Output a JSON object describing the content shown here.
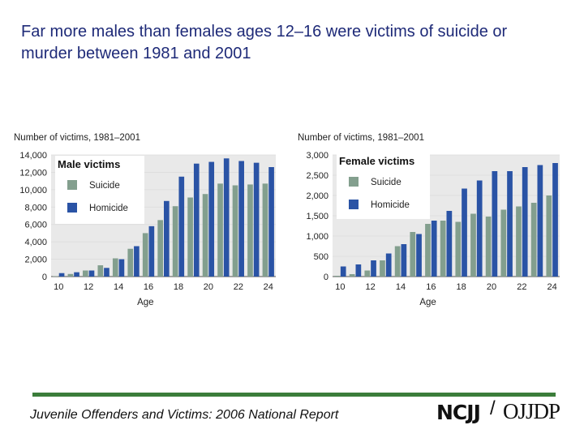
{
  "slide": {
    "title": "Far  more males than females ages 12–16 were victims of suicide or murder between 1981 and 2001"
  },
  "footer": {
    "report": "Juvenile Offenders and Victims: 2006 National Report",
    "logo_left": "NCJJ",
    "logo_slash": "/",
    "logo_right": "OJJDP"
  },
  "colors": {
    "suicide": "#839f8e",
    "homicide": "#2a53a5",
    "gridline": "#dcdcdc",
    "plot_bg": "#e9e9e9",
    "footer_rule": "#3b7d3a"
  },
  "chart_data": [
    {
      "type": "bar",
      "title": "Male victims",
      "ylabel": "Number of victims, 1981–2001",
      "xlabel": "Age",
      "categories": [
        10,
        11,
        12,
        13,
        14,
        15,
        16,
        17,
        18,
        19,
        20,
        21,
        22,
        23,
        24
      ],
      "x_tick_labels": [
        "10",
        "12",
        "14",
        "16",
        "18",
        "20",
        "22",
        "24"
      ],
      "y_tick_labels": [
        "0",
        "2,000",
        "4,000",
        "6,000",
        "8,000",
        "10,000",
        "12,000",
        "14,000"
      ],
      "ylim": [
        0,
        14000
      ],
      "grid": true,
      "legend_position": "top-left",
      "series": [
        {
          "name": "Suicide",
          "values": [
            50,
            300,
            700,
            1300,
            2100,
            3200,
            5000,
            6500,
            8100,
            9100,
            9500,
            10700,
            10500,
            10600,
            10700
          ]
        },
        {
          "name": "Homicide",
          "values": [
            400,
            500,
            700,
            1000,
            2000,
            3500,
            5800,
            8700,
            11500,
            13000,
            13200,
            13600,
            13300,
            13100,
            12600
          ]
        }
      ]
    },
    {
      "type": "bar",
      "title": "Female victims",
      "ylabel": "Number of victims, 1981–2001",
      "xlabel": "Age",
      "categories": [
        10,
        11,
        12,
        13,
        14,
        15,
        16,
        17,
        18,
        19,
        20,
        21,
        22,
        23,
        24
      ],
      "x_tick_labels": [
        "10",
        "12",
        "14",
        "16",
        "18",
        "20",
        "22",
        "24"
      ],
      "y_tick_labels": [
        "0",
        "500",
        "1,000",
        "1,500",
        "2,000",
        "2,500",
        "3,000"
      ],
      "ylim": [
        0,
        3000
      ],
      "grid": true,
      "legend_position": "top-left",
      "series": [
        {
          "name": "Suicide",
          "values": [
            20,
            60,
            150,
            400,
            750,
            1100,
            1300,
            1380,
            1350,
            1550,
            1480,
            1650,
            1730,
            1820,
            2000
          ]
        },
        {
          "name": "Homicide",
          "values": [
            250,
            300,
            400,
            570,
            800,
            1050,
            1380,
            1620,
            2170,
            2370,
            2600,
            2600,
            2700,
            2750,
            2800
          ]
        }
      ]
    }
  ]
}
